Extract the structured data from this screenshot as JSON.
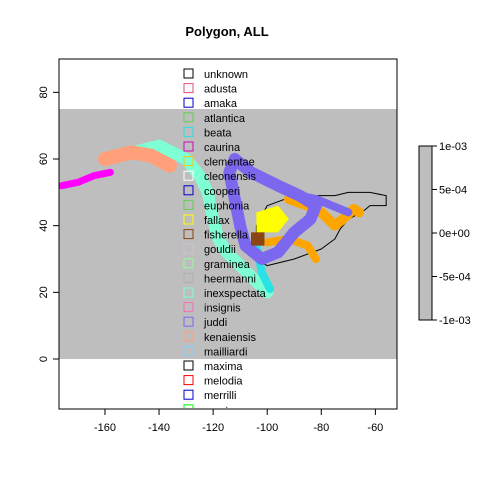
{
  "chart_data": {
    "type": "map",
    "title": "Polygon, ALL",
    "xlim": [
      -177,
      -52
    ],
    "ylim": [
      -15,
      90
    ],
    "plot_background": "#ffffff",
    "band": {
      "y_range": [
        0,
        75
      ],
      "color": "#bebebe"
    },
    "x_ticks": [
      -160,
      -140,
      -120,
      -100,
      -80,
      -60
    ],
    "x_tick_labels": [
      "-160",
      "-140",
      "-120",
      "-100",
      "-80",
      "-60"
    ],
    "y_ticks": [
      0,
      20,
      40,
      60,
      80
    ],
    "y_tick_labels": [
      "0",
      "20",
      "40",
      "60",
      "80"
    ],
    "legend": {
      "placement": "top-center",
      "items": [
        {
          "label": "unknown",
          "color": "#000000"
        },
        {
          "label": "adusta",
          "color": "#df536b"
        },
        {
          "label": "amaka",
          "color": "#0000cd"
        },
        {
          "label": "atlantica",
          "color": "#61d04f"
        },
        {
          "label": "beata",
          "color": "#28e2e5"
        },
        {
          "label": "caurina",
          "color": "#cd0bbc"
        },
        {
          "label": "clementae",
          "color": "#f5c710"
        },
        {
          "label": "cleonensis",
          "color": "#ffffff"
        },
        {
          "label": "cooperi",
          "color": "#0000cd"
        },
        {
          "label": "euphonia",
          "color": "#61d04f"
        },
        {
          "label": "fallax",
          "color": "#ffff00"
        },
        {
          "label": "fisherella",
          "color": "#8b4513"
        },
        {
          "label": "gouldii",
          "color": "#d8bfd8"
        },
        {
          "label": "graminea",
          "color": "#98fb98"
        },
        {
          "label": "heermanni",
          "color": "#b0b0b0"
        },
        {
          "label": "inexspectata",
          "color": "#7fffd4"
        },
        {
          "label": "insignis",
          "color": "#ff69b4"
        },
        {
          "label": "juddi",
          "color": "#7b68ee"
        },
        {
          "label": "kenaiensis",
          "color": "#ffa07a"
        },
        {
          "label": "mailliardi",
          "color": "#87cefa"
        },
        {
          "label": "maxima",
          "color": "#000000"
        },
        {
          "label": "melodia",
          "color": "#ff0000"
        },
        {
          "label": "merrilli",
          "color": "#0000cd"
        },
        {
          "label": "montana",
          "color": "#00ff00"
        }
      ]
    },
    "colorbar": {
      "range": [
        -0.001,
        0.001
      ],
      "ticks": [
        0.001,
        0.0005,
        0,
        -0.0005,
        -0.001
      ],
      "tick_labels": [
        "1e-03",
        "5e-04",
        "0e+00",
        "-5e-04",
        "-1e-03"
      ],
      "color": "#bebebe"
    }
  }
}
